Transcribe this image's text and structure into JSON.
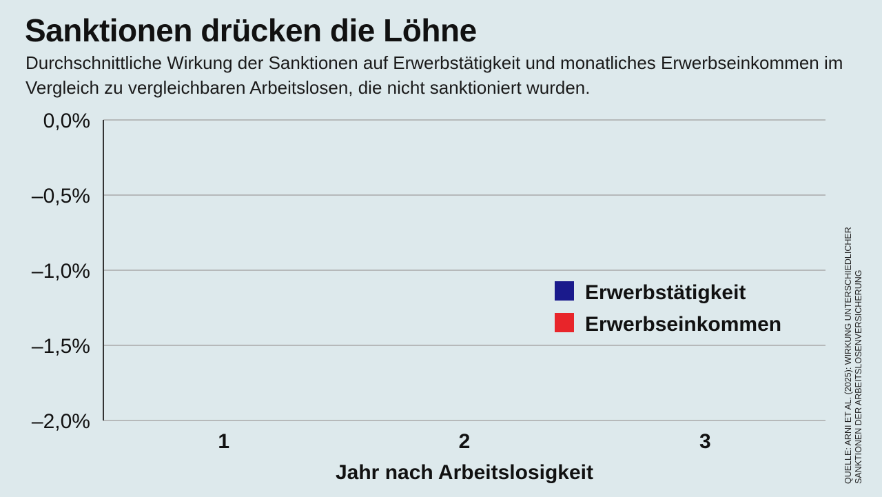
{
  "chart_data": {
    "type": "bar",
    "title": "Sanktionen drücken die Löhne",
    "subtitle": "Durchschnittliche Wirkung der Sanktionen auf Erwerbstätigkeit und monatliches Erwerbseinkommen im Vergleich zu vergleichbaren Arbeitslosen, die nicht sanktioniert wurden.",
    "xlabel": "Jahr nach Arbeitslosigkeit",
    "ylabel": "",
    "categories": [
      "1",
      "2",
      "3"
    ],
    "ylim": [
      -2.0,
      0.0
    ],
    "yticks": [
      0.0,
      -0.5,
      -1.0,
      -1.5,
      -2.0
    ],
    "ytick_labels": [
      "0,0%",
      "–0,5%",
      "–1,0%",
      "–1,5%",
      "–2,0%"
    ],
    "grid": true,
    "legend_position": "right",
    "series": [
      {
        "name": "Erwerbstätigkeit",
        "color": "#1a1a8c",
        "values": [
          0,
          0,
          0
        ]
      },
      {
        "name": "Erwerbseinkommen",
        "color": "#e8252a",
        "values": [
          0,
          0,
          0
        ]
      }
    ],
    "source": "Quelle: Arni et al. (2025): Wirkung unterschiedlicher Sanktionen der Arbeitslosenversicherung",
    "source_lines": [
      "Quelle: Arni et al. (2025): Wirkung unterschiedlicher",
      "Sanktionen der Arbeitslosenversicherung"
    ]
  },
  "colors": {
    "background": "#dde9ec",
    "gridline": "#a9a9a9",
    "axis": "#333333",
    "text": "#111111"
  }
}
